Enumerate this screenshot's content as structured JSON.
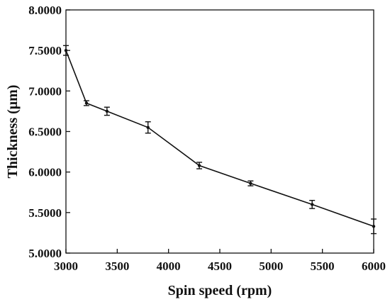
{
  "chart_data": {
    "type": "line",
    "title": "",
    "xlabel": "Spin speed (rpm)",
    "ylabel": "Thickness (μm)",
    "xlim": [
      3000,
      6000
    ],
    "ylim": [
      5.0,
      8.0
    ],
    "x_ticks": [
      3000,
      3500,
      4000,
      4500,
      5000,
      5500,
      6000
    ],
    "x_tick_labels": [
      "3000",
      "3500",
      "4000",
      "4500",
      "5000",
      "5500",
      "6000"
    ],
    "y_ticks": [
      5.0,
      5.5,
      6.0,
      6.5,
      7.0,
      7.5,
      8.0
    ],
    "y_tick_labels": [
      "5.0000",
      "5.5000",
      "6.0000",
      "6.5000",
      "7.0000",
      "7.5000",
      "8.0000"
    ],
    "grid": false,
    "legend": "none",
    "line_color": "#111111",
    "series": [
      {
        "x": [
          3000,
          3200,
          3400,
          3800,
          4300,
          4800,
          5400,
          6000
        ],
        "y": [
          7.5,
          6.85,
          6.75,
          6.55,
          6.08,
          5.86,
          5.6,
          5.33
        ],
        "error": [
          0.06,
          0.03,
          0.05,
          0.07,
          0.04,
          0.03,
          0.05,
          0.09
        ]
      }
    ]
  }
}
